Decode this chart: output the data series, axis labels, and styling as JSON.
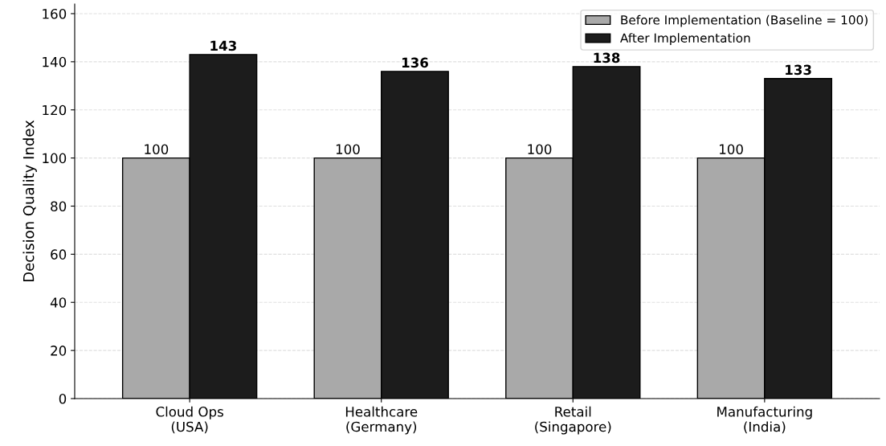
{
  "chart_data": {
    "type": "bar",
    "ylabel": "Decision Quality Index",
    "categories": [
      "Cloud Ops\n(USA)",
      "Healthcare\n(Germany)",
      "Retail\n(Singapore)",
      "Manufacturing\n(India)"
    ],
    "series": [
      {
        "name": "Before Implementation (Baseline = 100)",
        "color": "#a9a9a9",
        "values": [
          100,
          100,
          100,
          100
        ]
      },
      {
        "name": "After Implementation",
        "color": "#1c1c1c",
        "values": [
          143,
          136,
          138,
          133
        ]
      }
    ],
    "ylim": [
      0,
      164
    ],
    "yticks": [
      0,
      20,
      40,
      60,
      80,
      100,
      120,
      140,
      160
    ],
    "grid": "y",
    "legend": "top right",
    "data_labels": true
  }
}
